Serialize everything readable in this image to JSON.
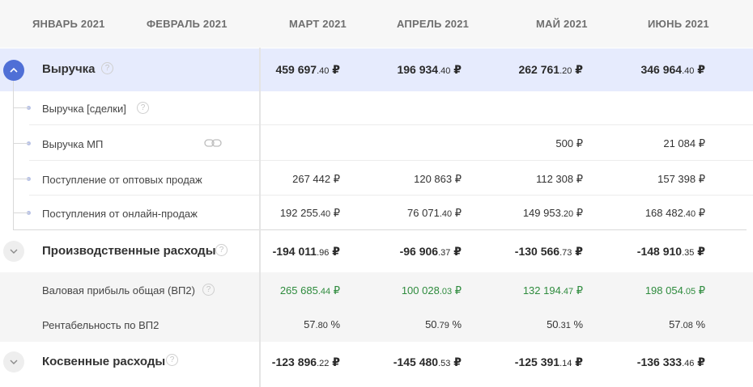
{
  "months": [
    "ЯНВАРЬ 2021",
    "ФЕВРАЛЬ 2021",
    "МАРТ 2021",
    "АПРЕЛЬ 2021",
    "МАЙ 2021",
    "ИЮНЬ 2021"
  ],
  "revenue": {
    "label": "Выручка",
    "help": "?",
    "values": [
      {
        "int": "459 697",
        "cents": ".40",
        "cur": " ₽"
      },
      {
        "int": "196 934",
        "cents": ".40",
        "cur": " ₽"
      },
      {
        "int": "262 761",
        "cents": ".20",
        "cur": " ₽"
      },
      {
        "int": "346 964",
        "cents": ".40",
        "cur": " ₽"
      }
    ],
    "children": [
      {
        "label": "Выручка [сделки]",
        "help": "?",
        "values": [
          "",
          "",
          "",
          ""
        ]
      },
      {
        "label": "Выручка МП",
        "icon": "link-icon",
        "values": [
          "",
          "",
          "500 ₽",
          "21 084 ₽"
        ]
      },
      {
        "label": "Поступление от оптовых продаж",
        "values": [
          "267 442 ₽",
          "120 863 ₽",
          "112 308 ₽",
          "157 398 ₽"
        ]
      },
      {
        "label": "Поступления от онлайн-продаж",
        "values": [
          {
            "int": "192 255",
            "cents": ".40",
            "cur": " ₽"
          },
          {
            "int": "76 071",
            "cents": ".40",
            "cur": " ₽"
          },
          {
            "int": "149 953",
            "cents": ".20",
            "cur": " ₽"
          },
          {
            "int": "168 482",
            "cents": ".40",
            "cur": " ₽"
          }
        ]
      }
    ]
  },
  "production": {
    "label": "Производственные расходы",
    "help": "?",
    "values": [
      {
        "int": "-194 011",
        "cents": ".96",
        "cur": " ₽"
      },
      {
        "int": "-96 906",
        "cents": ".37",
        "cur": " ₽"
      },
      {
        "int": "-130 566",
        "cents": ".73",
        "cur": " ₽"
      },
      {
        "int": "-148 910",
        "cents": ".35",
        "cur": " ₽"
      }
    ]
  },
  "gross_profit": {
    "label": "Валовая прибыль общая (ВП2)",
    "help": "?",
    "values": [
      {
        "int": "265 685",
        "cents": ".44",
        "cur": " ₽"
      },
      {
        "int": "100 028",
        "cents": ".03",
        "cur": " ₽"
      },
      {
        "int": "132 194",
        "cents": ".47",
        "cur": " ₽"
      },
      {
        "int": "198 054",
        "cents": ".05",
        "cur": " ₽"
      }
    ]
  },
  "profitability": {
    "label": "Рентабельность по ВП2",
    "values": [
      {
        "int": "57",
        "cents": ".80",
        "cur": " %"
      },
      {
        "int": "50",
        "cents": ".79",
        "cur": " %"
      },
      {
        "int": "50",
        "cents": ".31",
        "cur": " %"
      },
      {
        "int": "57",
        "cents": ".08",
        "cur": " %"
      }
    ]
  },
  "indirect": {
    "label": "Косвенные расходы",
    "help": "?",
    "values": [
      {
        "int": "-123 896",
        "cents": ".22",
        "cur": " ₽"
      },
      {
        "int": "-145 480",
        "cents": ".53",
        "cur": " ₽"
      },
      {
        "int": "-125 391",
        "cents": ".14",
        "cur": " ₽"
      },
      {
        "int": "-136 333",
        "cents": ".46",
        "cur": " ₽"
      }
    ]
  },
  "colors": {
    "accent": "#4f6fd6",
    "positive": "#2e8b3d",
    "highlight_row": "#e6ebfd"
  }
}
